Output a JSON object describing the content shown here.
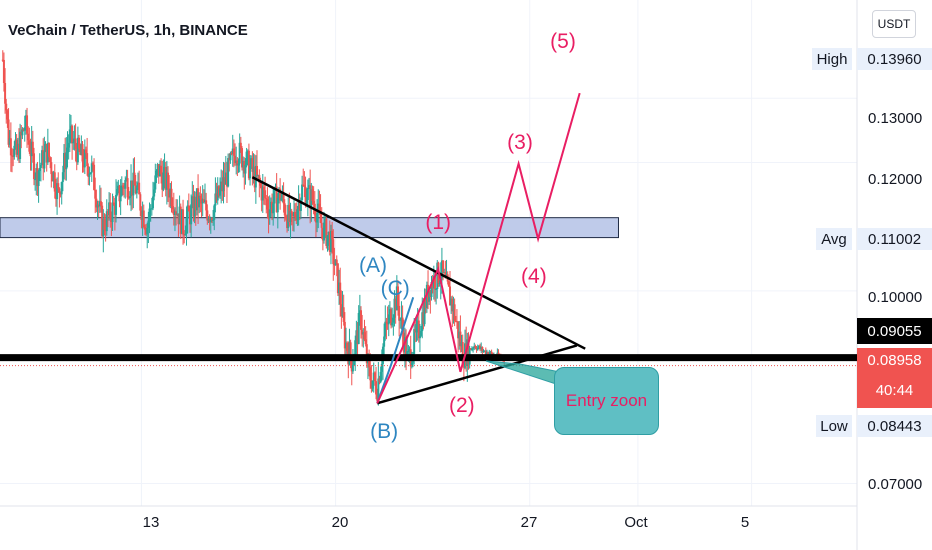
{
  "header": {
    "title": "VeChain / TetherUS, 1h, BINANCE"
  },
  "currency": "USDT",
  "stats": {
    "high_label": "High",
    "high_value": "0.13960",
    "avg_label": "Avg",
    "avg_value": "0.11002",
    "low_label": "Low",
    "low_value": "0.08443",
    "last_price": "0.09055",
    "current_price": "0.08958",
    "countdown": "40:44"
  },
  "annotations": {
    "entry_label": "Entry zoon",
    "waves": [
      {
        "text": "(1)",
        "time": 23.7,
        "price": 0.1106,
        "color": "#e91e63"
      },
      {
        "text": "(2)",
        "time": 24.55,
        "price": 0.0821,
        "color": "#e91e63"
      },
      {
        "text": "(3)",
        "time": 26.65,
        "price": 0.123,
        "color": "#e91e63"
      },
      {
        "text": "(4)",
        "time": 27.15,
        "price": 0.1021,
        "color": "#e91e63"
      },
      {
        "text": "(5)",
        "time": 28.2,
        "price": 0.1388,
        "color": "#e91e63"
      },
      {
        "text": "(A)",
        "time": 21.35,
        "price": 0.1039,
        "color": "#2e86c1"
      },
      {
        "text": "(B)",
        "time": 21.75,
        "price": 0.0781,
        "color": "#2e86c1"
      },
      {
        "text": "(C)",
        "time": 22.15,
        "price": 0.1003,
        "color": "#2e86c1"
      }
    ]
  },
  "colors": {
    "candle_up": "#26a69a",
    "candle_down": "#ef5350",
    "wave_pink": "#e91e63",
    "wave_blue": "#2e86c1",
    "zone_fill": "#b4c2e6",
    "zone_border": "#1f2a44",
    "last_bg": "#000000",
    "current_bg": "#f05350"
  },
  "chart_data": {
    "type": "candlestick",
    "title": "VeChain / TetherUS, 1h, BINANCE",
    "x_axis": {
      "ticks": [
        "13",
        "20",
        "27",
        "Oct",
        "5"
      ],
      "tick_times": [
        13,
        20,
        27,
        30.9,
        35
      ],
      "range": [
        7.9,
        38.8
      ]
    },
    "y_axis": {
      "ticks": [
        "0.13000",
        "0.12000",
        "0.10000",
        "0.07000"
      ],
      "tick_values": [
        0.13,
        0.12,
        0.1,
        0.07
      ],
      "range": [
        0.0665,
        0.1453
      ]
    },
    "price_path": [
      [
        8.0,
        0.136
      ],
      [
        8.2,
        0.124
      ],
      [
        8.5,
        0.121
      ],
      [
        8.8,
        0.126
      ],
      [
        9.2,
        0.118
      ],
      [
        9.6,
        0.122
      ],
      [
        10.0,
        0.115
      ],
      [
        10.4,
        0.124
      ],
      [
        10.8,
        0.121
      ],
      [
        11.2,
        0.119
      ],
      [
        11.6,
        0.11
      ],
      [
        12.0,
        0.113
      ],
      [
        12.4,
        0.117
      ],
      [
        12.8,
        0.116
      ],
      [
        13.2,
        0.11
      ],
      [
        13.6,
        0.119
      ],
      [
        14.0,
        0.116
      ],
      [
        14.5,
        0.11
      ],
      [
        15.0,
        0.114
      ],
      [
        15.5,
        0.112
      ],
      [
        16.0,
        0.117
      ],
      [
        16.4,
        0.122
      ],
      [
        16.8,
        0.12
      ],
      [
        17.2,
        0.117
      ],
      [
        17.6,
        0.113
      ],
      [
        18.0,
        0.115
      ],
      [
        18.4,
        0.11
      ],
      [
        18.8,
        0.116
      ],
      [
        19.2,
        0.114
      ],
      [
        19.5,
        0.11
      ],
      [
        19.8,
        0.108
      ],
      [
        20.1,
        0.101
      ],
      [
        20.35,
        0.092
      ],
      [
        20.6,
        0.089
      ],
      [
        20.9,
        0.096
      ],
      [
        21.2,
        0.087
      ],
      [
        21.5,
        0.085
      ],
      [
        21.8,
        0.094
      ],
      [
        22.2,
        0.099
      ],
      [
        22.6,
        0.089
      ],
      [
        23.0,
        0.094
      ],
      [
        23.4,
        0.101
      ],
      [
        23.8,
        0.103
      ],
      [
        24.2,
        0.098
      ],
      [
        24.6,
        0.09
      ],
      [
        25.0,
        0.0915
      ],
      [
        25.4,
        0.0905
      ],
      [
        25.8,
        0.0898
      ],
      [
        26.1,
        0.0896
      ]
    ],
    "resistance_zone": {
      "low": 0.1083,
      "high": 0.1114,
      "time_start": 7.9,
      "time_end": 30.2
    },
    "support_line": 0.0896,
    "triangle": {
      "upper": [
        [
          17.0,
          0.1177
        ],
        [
          29.0,
          0.091
        ]
      ],
      "lower": [
        [
          21.5,
          0.0825
        ],
        [
          28.7,
          0.0915
        ]
      ]
    },
    "wave_path_pink": [
      [
        21.5,
        0.0825
      ],
      [
        23.7,
        0.1034
      ],
      [
        24.5,
        0.0874
      ],
      [
        26.6,
        0.1198
      ],
      [
        27.3,
        0.1081
      ],
      [
        28.8,
        0.1308
      ]
    ],
    "wave_path_blue": [
      [
        21.5,
        0.0825
      ],
      [
        22.0,
        0.0885
      ],
      [
        22.8,
        0.099
      ]
    ]
  }
}
